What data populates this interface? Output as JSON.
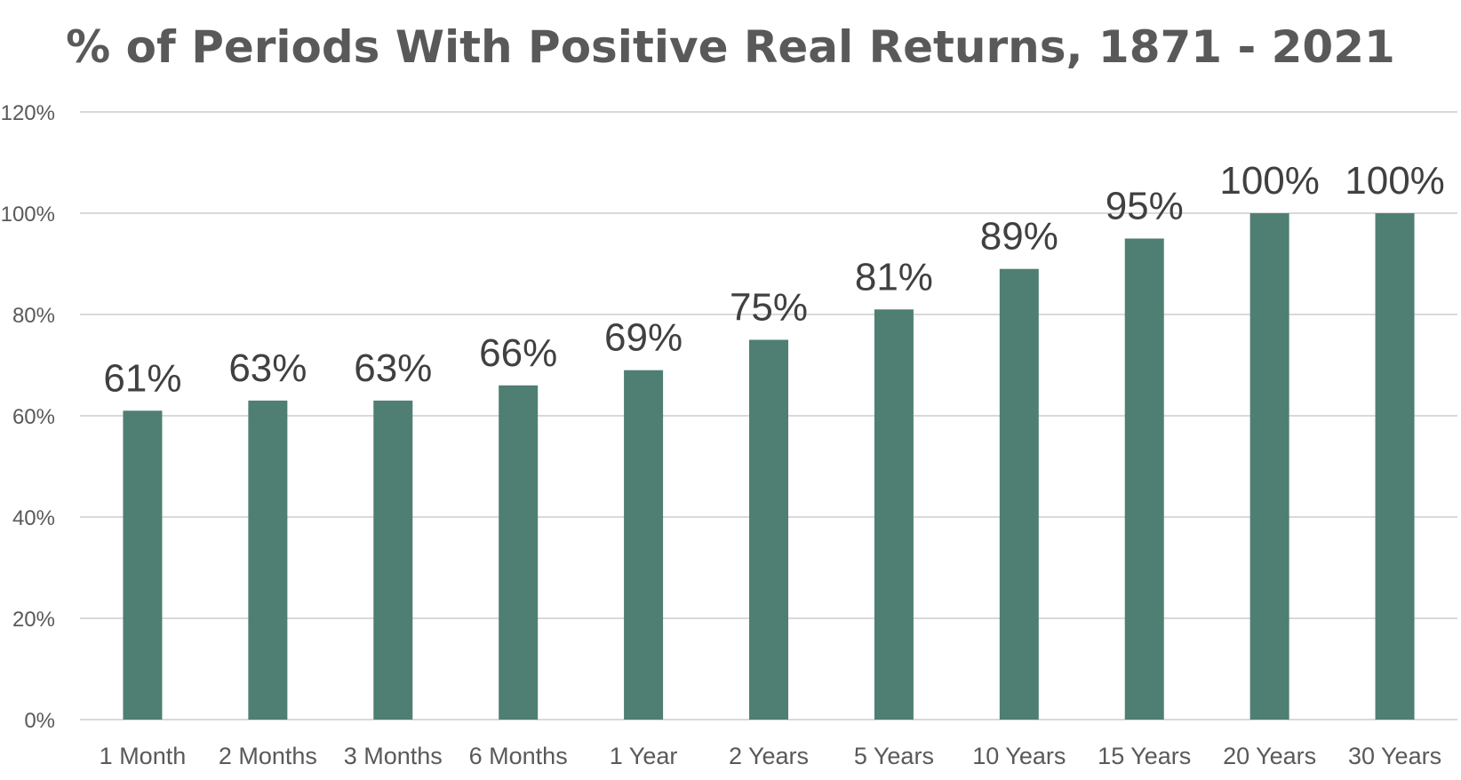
{
  "chart_data": {
    "type": "bar",
    "title": "% of Periods With Positive Real Returns, 1871 - 2021",
    "xlabel": "",
    "ylabel": "",
    "categories": [
      "1 Month",
      "2 Months",
      "3 Months",
      "6 Months",
      "1 Year",
      "2 Years",
      "5 Years",
      "10 Years",
      "15 Years",
      "20 Years",
      "30 Years"
    ],
    "values": [
      61,
      63,
      63,
      66,
      69,
      75,
      81,
      89,
      95,
      100,
      100
    ],
    "data_labels": [
      "61%",
      "63%",
      "63%",
      "66%",
      "69%",
      "75%",
      "81%",
      "89%",
      "95%",
      "100%",
      "100%"
    ],
    "ylim": [
      0,
      120
    ],
    "yticks": [
      0,
      20,
      40,
      60,
      80,
      100,
      120
    ],
    "ytick_labels": [
      "0%",
      "20%",
      "40%",
      "60%",
      "80%",
      "100%",
      "120%"
    ],
    "grid": true,
    "legend": "none",
    "bar_color": "#4e7f72"
  }
}
